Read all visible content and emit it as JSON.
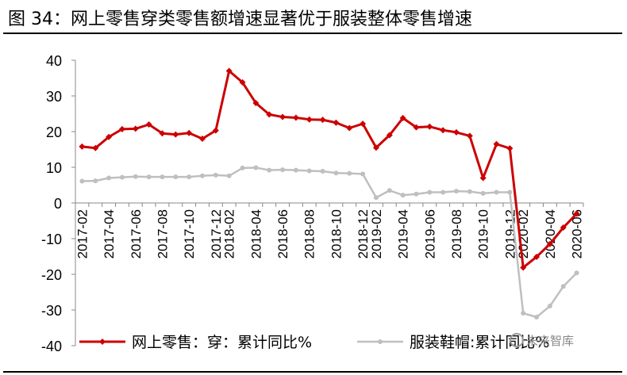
{
  "figure": {
    "title": "图 34：网上零售穿类零售额增速显著优于服装整体零售增速"
  },
  "watermark": {
    "text": "未来智库",
    "icon": "wechat-icon"
  },
  "chart_data": {
    "type": "line",
    "x": [
      "2017-02",
      "2017-03",
      "2017-04",
      "2017-05",
      "2017-06",
      "2017-07",
      "2017-08",
      "2017-09",
      "2017-10",
      "2017-11",
      "2017-12",
      "2018-02",
      "2018-03",
      "2018-04",
      "2018-05",
      "2018-06",
      "2018-07",
      "2018-08",
      "2018-09",
      "2018-10",
      "2018-11",
      "2018-12",
      "2019-02",
      "2019-03",
      "2019-04",
      "2019-05",
      "2019-06",
      "2019-07",
      "2019-08",
      "2019-09",
      "2019-10",
      "2019-11",
      "2019-12",
      "2020-02",
      "2020-03",
      "2020-04",
      "2020-05",
      "2020-06"
    ],
    "x_tick_labels": [
      "2017-02",
      "2017-04",
      "2017-06",
      "2017-08",
      "2017-10",
      "2017-12",
      "2018-02",
      "2018-04",
      "2018-06",
      "2018-08",
      "2018-10",
      "2018-12",
      "2019-02",
      "2019-04",
      "2019-06",
      "2019-08",
      "2019-10",
      "2019-12",
      "2020-02",
      "2020-04",
      "2020-06"
    ],
    "ylim": [
      -40,
      40
    ],
    "yticks": [
      40,
      30,
      20,
      10,
      0,
      -10,
      -20,
      -30,
      -40
    ],
    "grid": false,
    "legend_position": "bottom",
    "series": [
      {
        "name": "网上零售：穿：累计同比%",
        "color": "#CC0000",
        "marker": "diamond",
        "values": [
          15.8,
          15.4,
          18.5,
          20.7,
          20.8,
          22.0,
          19.5,
          19.2,
          19.6,
          18.0,
          20.3,
          37.0,
          33.8,
          28.0,
          24.8,
          24.1,
          23.9,
          23.4,
          23.3,
          22.5,
          21.0,
          22.2,
          15.5,
          19.0,
          23.8,
          21.2,
          21.4,
          20.4,
          19.8,
          18.8,
          7.0,
          16.5,
          15.3,
          -18.1,
          -15.1,
          -11.5,
          -6.9,
          -3.0
        ]
      },
      {
        "name": "服装鞋帽:累计同比%",
        "color": "#BFBFBF",
        "marker": "circle",
        "values": [
          6.1,
          6.2,
          7.0,
          7.2,
          7.4,
          7.3,
          7.3,
          7.3,
          7.3,
          7.6,
          7.8,
          7.6,
          9.8,
          9.9,
          9.2,
          9.3,
          9.2,
          9.0,
          8.9,
          8.4,
          8.3,
          8.1,
          1.5,
          3.5,
          2.2,
          2.5,
          3.0,
          3.0,
          3.3,
          3.2,
          2.7,
          3.0,
          3.0,
          -30.9,
          -32.0,
          -28.9,
          -23.4,
          -19.6
        ]
      }
    ]
  }
}
